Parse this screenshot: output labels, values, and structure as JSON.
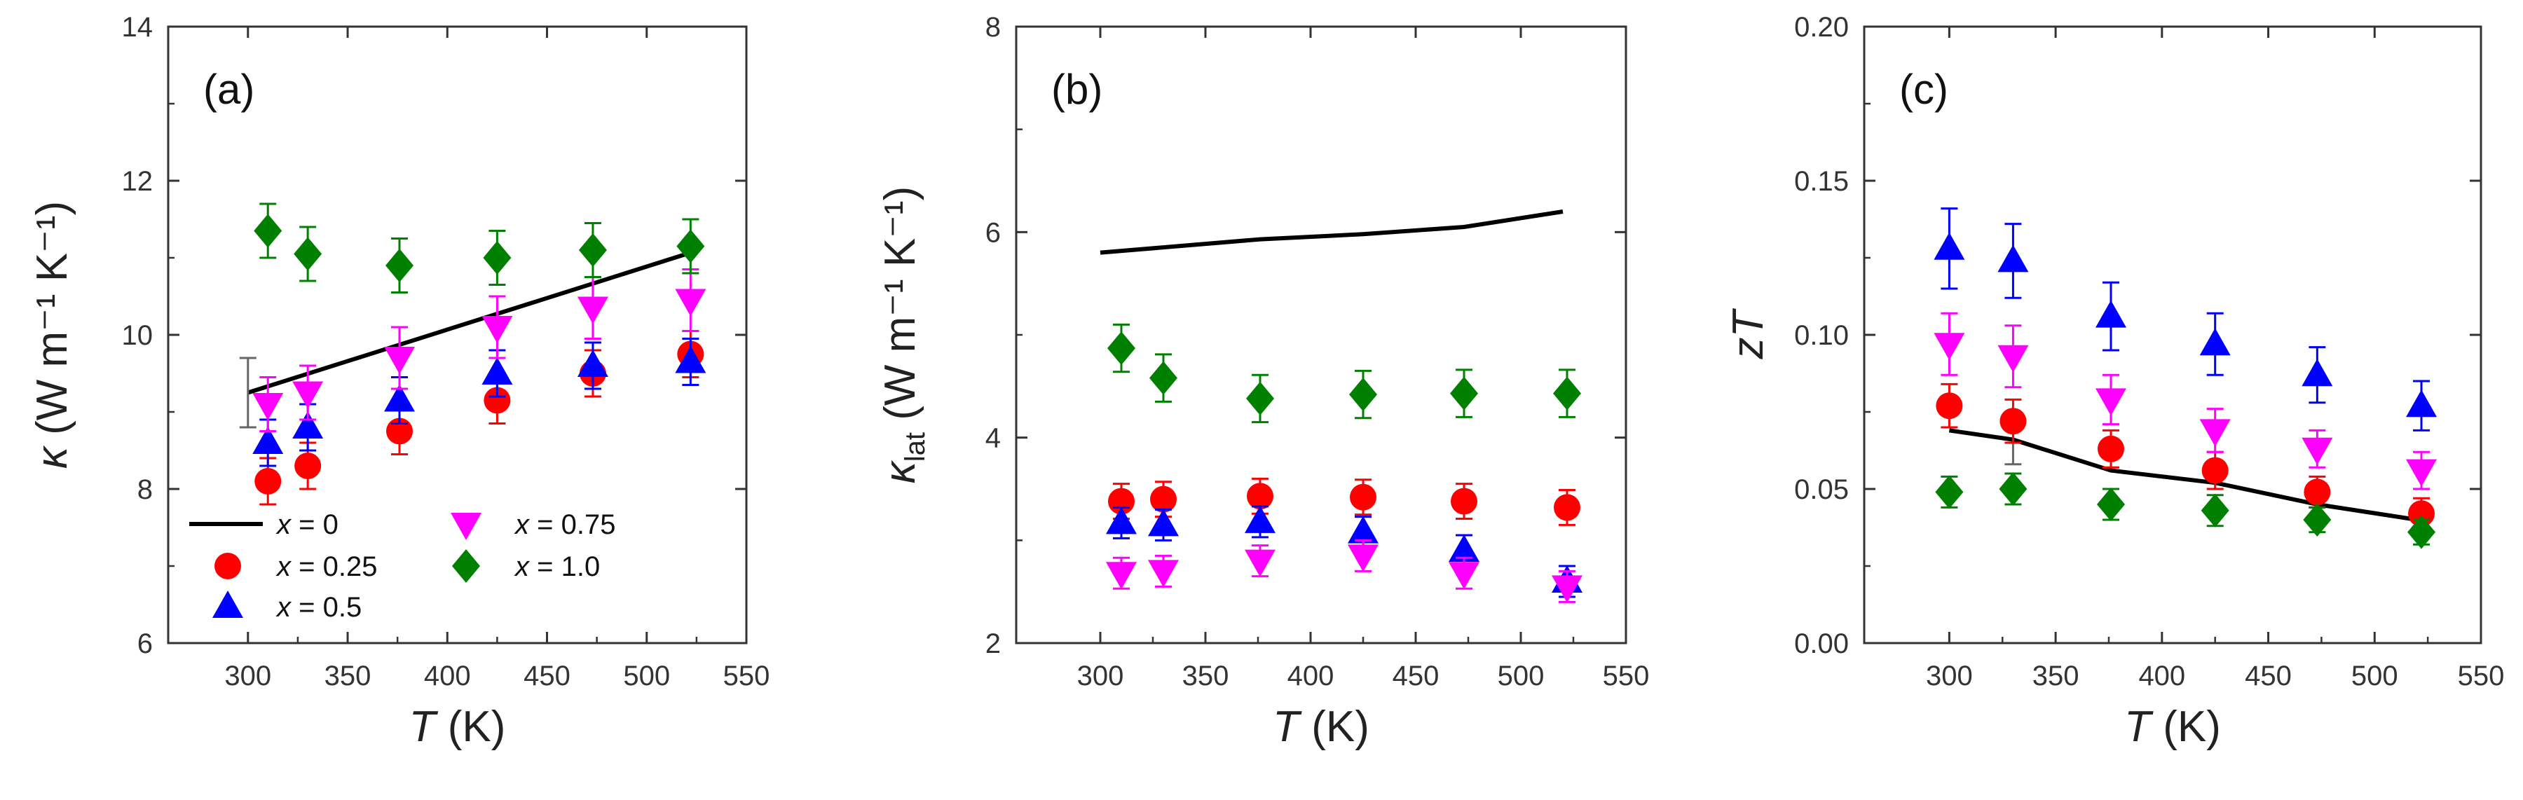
{
  "chart_data": [
    {
      "id": "a",
      "type": "scatter",
      "panel_label": "(a)",
      "xlabel_symbol": "T",
      "xlabel_unit": "(K)",
      "ylabel_symbol": "κ",
      "ylabel_sub": "",
      "ylabel_unit": "(W m⁻¹ K⁻¹)",
      "xlim": [
        260,
        550
      ],
      "ylim": [
        6,
        14
      ],
      "xticks": [
        300,
        350,
        400,
        450,
        500,
        550
      ],
      "yticks": [
        6,
        8,
        10,
        12,
        14
      ],
      "ytick_labels": [
        "6",
        "8",
        "10",
        "12",
        "14"
      ],
      "legend": {
        "placement": "bottom-left",
        "entries": [
          {
            "series": "x0",
            "prefix": "x",
            "text": " = 0"
          },
          {
            "series": "x025",
            "prefix": "x",
            "text": " = 0.25"
          },
          {
            "series": "x05",
            "prefix": "x",
            "text": " = 0.5"
          },
          {
            "series": "x075",
            "prefix": "x",
            "text": " = 0.75"
          },
          {
            "series": "x10",
            "prefix": "x",
            "text": " = 1.0"
          }
        ]
      },
      "series": [
        {
          "key": "x0",
          "style": "line",
          "color": "#000000",
          "x": [
            300,
            520
          ],
          "y": [
            9.25,
            11.05
          ],
          "err_x": [
            300
          ],
          "err_y": [
            9.25
          ],
          "err": [
            0.45
          ]
        },
        {
          "key": "x025",
          "style": "circle",
          "color": "#ff0000",
          "x": [
            310,
            330,
            376,
            425,
            473,
            522
          ],
          "y": [
            8.1,
            8.3,
            8.75,
            9.15,
            9.5,
            9.75
          ],
          "err": [
            0.3,
            0.3,
            0.3,
            0.3,
            0.3,
            0.3
          ]
        },
        {
          "key": "x05",
          "style": "triangle-up",
          "color": "#0000ff",
          "x": [
            310,
            330,
            376,
            425,
            473,
            522
          ],
          "y": [
            8.6,
            8.8,
            9.15,
            9.5,
            9.6,
            9.65
          ],
          "err": [
            0.3,
            0.3,
            0.3,
            0.3,
            0.3,
            0.3
          ]
        },
        {
          "key": "x075",
          "style": "triangle-down",
          "color": "#ff00ff",
          "x": [
            310,
            330,
            376,
            425,
            473,
            522
          ],
          "y": [
            9.1,
            9.25,
            9.7,
            10.1,
            10.35,
            10.45
          ],
          "err": [
            0.35,
            0.35,
            0.4,
            0.4,
            0.4,
            0.4
          ]
        },
        {
          "key": "x10",
          "style": "diamond",
          "color": "#008000",
          "x": [
            310,
            330,
            376,
            425,
            473,
            522
          ],
          "y": [
            11.35,
            11.05,
            10.9,
            11.0,
            11.1,
            11.15
          ],
          "err": [
            0.35,
            0.35,
            0.35,
            0.35,
            0.35,
            0.35
          ]
        }
      ]
    },
    {
      "id": "b",
      "type": "scatter",
      "panel_label": "(b)",
      "xlabel_symbol": "T",
      "xlabel_unit": "(K)",
      "ylabel_symbol": "κ",
      "ylabel_sub": "lat",
      "ylabel_unit": "(W m⁻¹ K⁻¹)",
      "xlim": [
        260,
        550
      ],
      "ylim": [
        2,
        8
      ],
      "xticks": [
        300,
        350,
        400,
        450,
        500,
        550
      ],
      "yticks": [
        2,
        4,
        6,
        8
      ],
      "ytick_labels": [
        "2",
        "4",
        "6",
        "8"
      ],
      "series": [
        {
          "key": "x0",
          "style": "line",
          "color": "#000000",
          "x": [
            300,
            376,
            425,
            473,
            520
          ],
          "y": [
            5.8,
            5.93,
            5.98,
            6.05,
            6.2
          ]
        },
        {
          "key": "x025",
          "style": "circle",
          "color": "#ff0000",
          "x": [
            310,
            330,
            376,
            425,
            473,
            522
          ],
          "y": [
            3.38,
            3.4,
            3.43,
            3.42,
            3.38,
            3.32
          ],
          "err": [
            0.17,
            0.17,
            0.17,
            0.17,
            0.17,
            0.17
          ]
        },
        {
          "key": "x05",
          "style": "triangle-up",
          "color": "#0000ff",
          "x": [
            310,
            330,
            376,
            425,
            473,
            522
          ],
          "y": [
            3.17,
            3.15,
            3.18,
            3.08,
            2.9,
            2.6
          ],
          "err": [
            0.15,
            0.15,
            0.15,
            0.15,
            0.15,
            0.15
          ]
        },
        {
          "key": "x075",
          "style": "triangle-down",
          "color": "#ff00ff",
          "x": [
            310,
            330,
            376,
            425,
            473,
            522
          ],
          "y": [
            2.68,
            2.7,
            2.8,
            2.85,
            2.68,
            2.55
          ],
          "err": [
            0.15,
            0.15,
            0.15,
            0.15,
            0.15,
            0.15
          ]
        },
        {
          "key": "x10",
          "style": "diamond",
          "color": "#008000",
          "x": [
            310,
            330,
            376,
            425,
            473,
            522
          ],
          "y": [
            4.87,
            4.58,
            4.38,
            4.42,
            4.43,
            4.43
          ],
          "err": [
            0.23,
            0.23,
            0.23,
            0.23,
            0.23,
            0.23
          ]
        }
      ]
    },
    {
      "id": "c",
      "type": "scatter",
      "panel_label": "(c)",
      "xlabel_symbol": "T",
      "xlabel_unit": "(K)",
      "ylabel_symbol": "zT",
      "ylabel_sub": "",
      "ylabel_unit": "",
      "xlim": [
        260,
        550
      ],
      "ylim": [
        0.0,
        0.2
      ],
      "xticks": [
        300,
        350,
        400,
        450,
        500,
        550
      ],
      "yticks": [
        0.0,
        0.05,
        0.1,
        0.15,
        0.2
      ],
      "ytick_labels": [
        "0.00",
        "0.05",
        "0.10",
        "0.15",
        "0.20"
      ],
      "series": [
        {
          "key": "x0",
          "style": "line",
          "color": "#000000",
          "x": [
            300,
            330,
            376,
            425,
            473,
            520
          ],
          "y": [
            0.069,
            0.066,
            0.056,
            0.052,
            0.045,
            0.04
          ],
          "err_x": [
            330
          ],
          "err_y": [
            0.066
          ],
          "err": [
            0.008
          ]
        },
        {
          "key": "x025",
          "style": "circle",
          "color": "#ff0000",
          "x": [
            300,
            330,
            376,
            425,
            473,
            522
          ],
          "y": [
            0.077,
            0.072,
            0.063,
            0.056,
            0.049,
            0.042
          ],
          "err": [
            0.007,
            0.007,
            0.006,
            0.006,
            0.005,
            0.005
          ]
        },
        {
          "key": "x05",
          "style": "triangle-up",
          "color": "#0000ff",
          "x": [
            300,
            330,
            376,
            425,
            473,
            522
          ],
          "y": [
            0.128,
            0.124,
            0.106,
            0.097,
            0.087,
            0.077
          ],
          "err": [
            0.013,
            0.012,
            0.011,
            0.01,
            0.009,
            0.008
          ]
        },
        {
          "key": "x075",
          "style": "triangle-down",
          "color": "#ff00ff",
          "x": [
            300,
            330,
            376,
            425,
            473,
            522
          ],
          "y": [
            0.097,
            0.093,
            0.079,
            0.069,
            0.063,
            0.056
          ],
          "err": [
            0.01,
            0.01,
            0.008,
            0.007,
            0.006,
            0.006
          ]
        },
        {
          "key": "x10",
          "style": "diamond",
          "color": "#008000",
          "x": [
            300,
            330,
            376,
            425,
            473,
            522
          ],
          "y": [
            0.049,
            0.05,
            0.045,
            0.043,
            0.04,
            0.036
          ],
          "err": [
            0.005,
            0.005,
            0.005,
            0.005,
            0.004,
            0.004
          ]
        }
      ]
    }
  ]
}
